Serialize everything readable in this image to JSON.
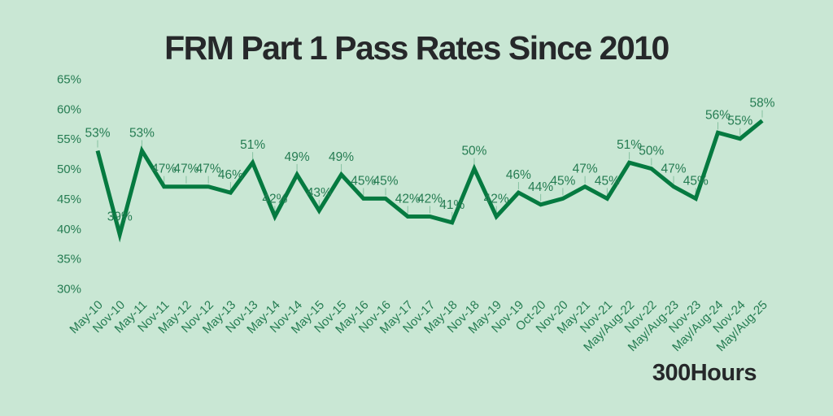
{
  "title": "FRM Part 1 Pass Rates Since 2010",
  "brand": "300Hours",
  "colors": {
    "background": "#c9e7d4",
    "line": "#057a40",
    "labels": "#257c52",
    "title_text": "#26282a"
  },
  "chart_data": {
    "type": "line",
    "title": "FRM Part 1 Pass Rates Since 2010",
    "categories": [
      "May-10",
      "Nov-10",
      "May-11",
      "Nov-11",
      "May-12",
      "Nov-12",
      "May-13",
      "Nov-13",
      "May-14",
      "Nov-14",
      "May-15",
      "Nov-15",
      "May-16",
      "Nov-16",
      "May-17",
      "Nov-17",
      "May-18",
      "Nov-18",
      "May-19",
      "Nov-19",
      "Oct-20",
      "Nov-20",
      "May-21",
      "Nov-21",
      "May/Aug-22",
      "Nov-22",
      "May/Aug-23",
      "Nov-23",
      "May/Aug-24",
      "Nov-24",
      "May/Aug-25"
    ],
    "values": [
      53,
      39,
      53,
      47,
      47,
      47,
      46,
      51,
      42,
      49,
      43,
      49,
      45,
      45,
      42,
      42,
      41,
      50,
      42,
      46,
      44,
      45,
      47,
      45,
      51,
      50,
      47,
      45,
      56,
      55,
      58
    ],
    "data_label_format": "{v}%",
    "xlabel": "",
    "ylabel": "",
    "ylim": [
      30,
      65
    ],
    "yticks": [
      65,
      60,
      55,
      50,
      45,
      40,
      35,
      30
    ],
    "ytick_format": "{v}%",
    "grid": false,
    "legend": false,
    "x_tick_rotation_deg": -45
  }
}
